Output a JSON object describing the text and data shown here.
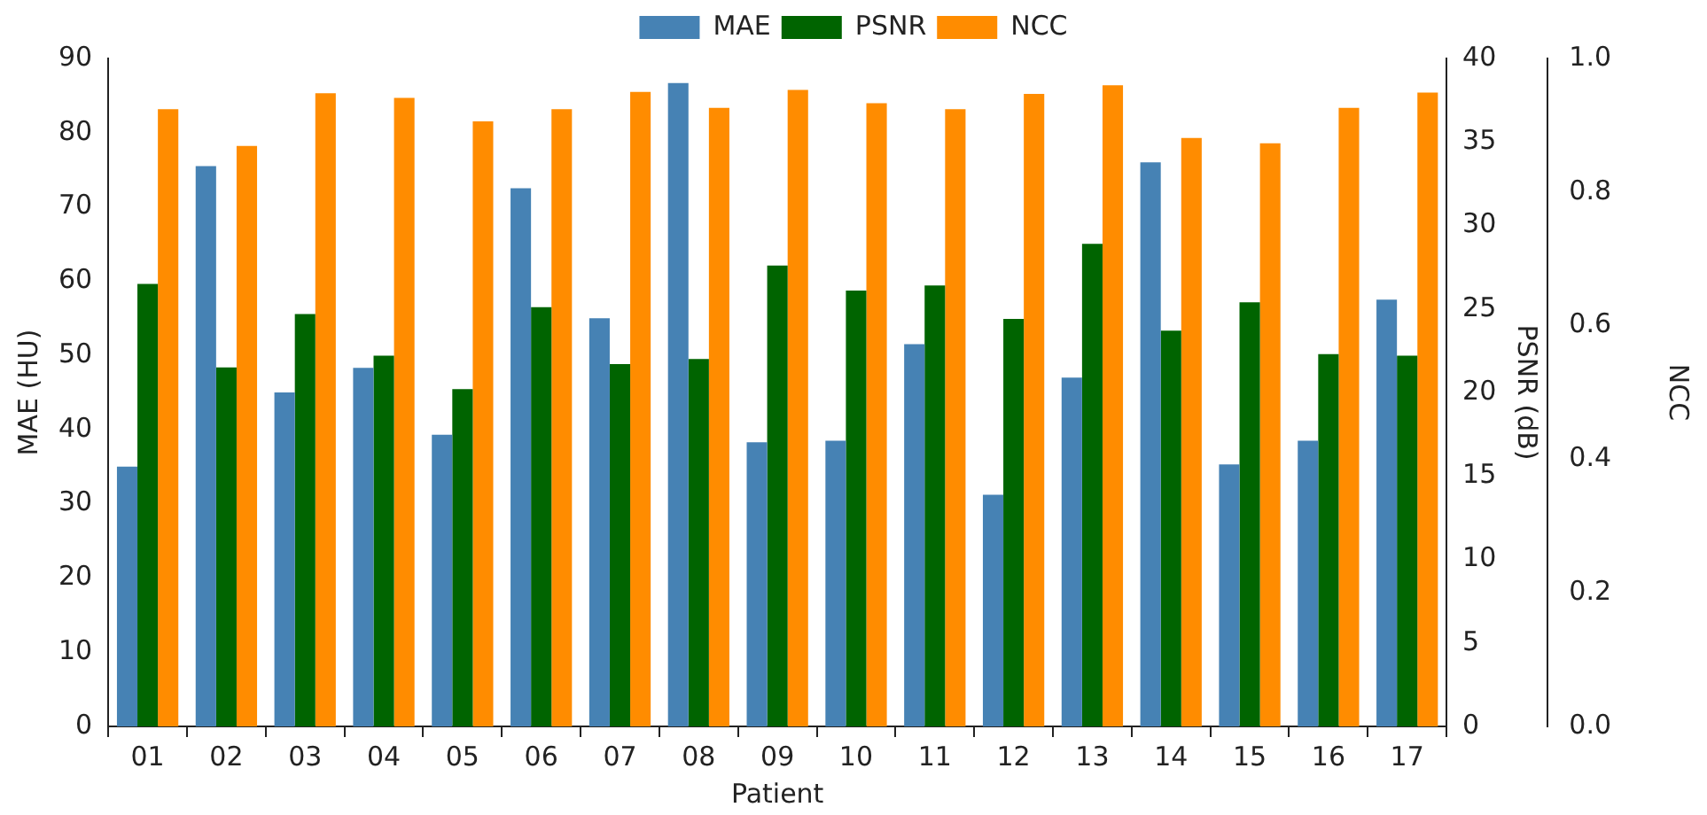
{
  "chart_data": {
    "type": "bar",
    "xlabel": "Patient",
    "ylabel": "MAE (HU)",
    "y2label": "PSNR (dB)",
    "y3label": "NCC",
    "categories": [
      "01",
      "02",
      "03",
      "04",
      "05",
      "06",
      "07",
      "08",
      "09",
      "10",
      "11",
      "12",
      "13",
      "14",
      "15",
      "16",
      "17"
    ],
    "series": [
      {
        "name": "MAE",
        "color": "#4682b4",
        "values": [
          35,
          75.5,
          45,
          48.3,
          39.3,
          72.5,
          55,
          86.7,
          38.3,
          38.5,
          51.5,
          31.2,
          47,
          76,
          35.3,
          38.5,
          57.5
        ]
      },
      {
        "name": "PSNR",
        "color": "#006400",
        "axis": "y2",
        "values": [
          26.5,
          21.5,
          24.7,
          22.2,
          20.2,
          25.1,
          21.7,
          22,
          27.6,
          26.1,
          26.4,
          24.4,
          28.9,
          23.7,
          25.4,
          22.3,
          22.2
        ]
      },
      {
        "name": "NCC",
        "color": "#ff8c00",
        "axis": "y3",
        "values": [
          0.924,
          0.869,
          0.948,
          0.941,
          0.906,
          0.924,
          0.95,
          0.926,
          0.953,
          0.933,
          0.924,
          0.947,
          0.96,
          0.881,
          0.873,
          0.926,
          0.949
        ]
      }
    ],
    "ylim": [
      0,
      90
    ],
    "yticks": [
      0,
      10,
      20,
      30,
      40,
      50,
      60,
      70,
      80,
      90
    ],
    "y2lim": [
      0,
      40
    ],
    "y2ticks": [
      0,
      5,
      10,
      15,
      20,
      25,
      30,
      35,
      40
    ],
    "y3lim": [
      0,
      1
    ],
    "y3ticks": [
      {
        "value": 0,
        "label": "0.0"
      },
      0.2,
      0.4,
      0.6,
      0.8,
      {
        "value": 1,
        "label": "1.0"
      }
    ],
    "grid": false,
    "legend": "top"
  }
}
